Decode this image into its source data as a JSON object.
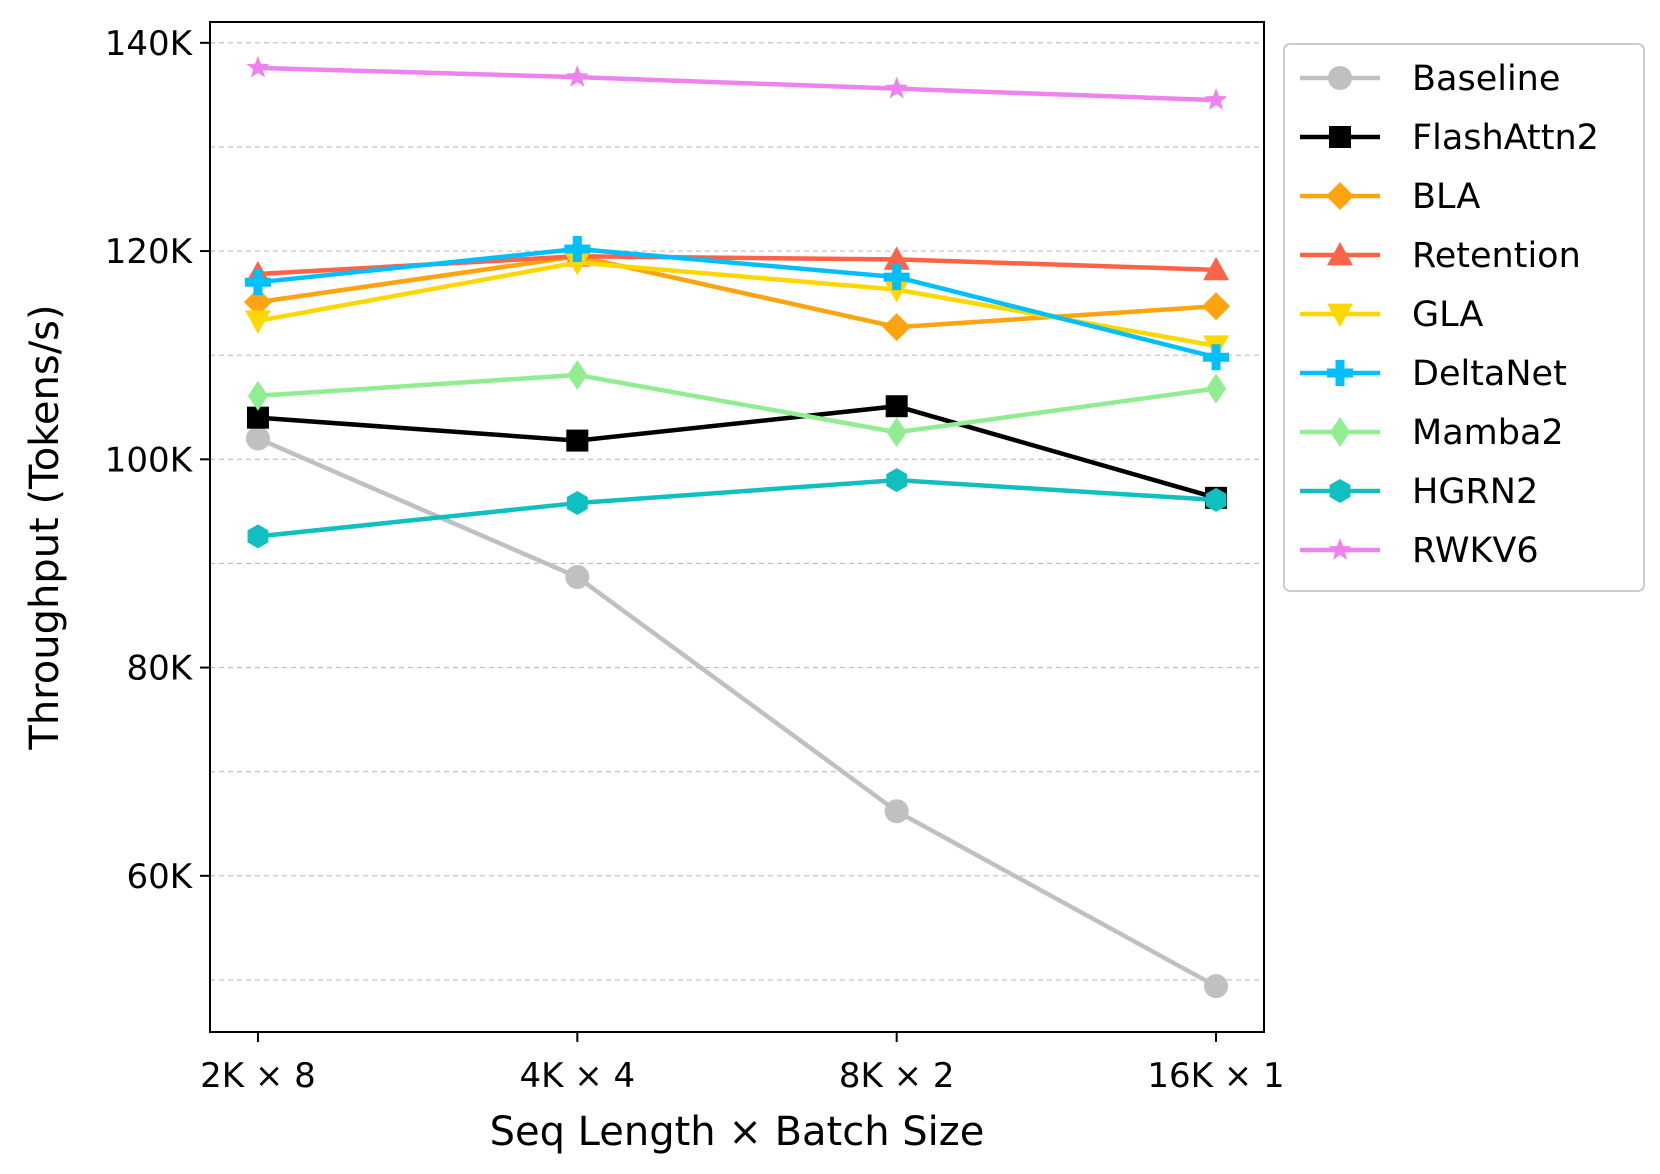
{
  "chart_data": {
    "type": "line",
    "title": "",
    "xlabel": "Seq Length × Batch Size",
    "ylabel": "Throughput (Tokens/s)",
    "categories": [
      "2K × 8",
      "4K × 4",
      "8K × 2",
      "16K × 1"
    ],
    "ylim": [
      45000,
      142000
    ],
    "yticks": [
      60000,
      80000,
      100000,
      120000,
      140000
    ],
    "ytick_labels": [
      "60K",
      "80K",
      "100K",
      "120K",
      "140K"
    ],
    "minor_gridlines": [
      50000,
      70000,
      90000,
      110000,
      130000
    ],
    "grid": "horizontal dashed",
    "legend_position": "outside-right-top",
    "series": [
      {
        "name": "Baseline",
        "color": "#c0c0c0",
        "marker": "circle",
        "values": [
          102000,
          88700,
          66200,
          49400
        ]
      },
      {
        "name": "FlashAttn2",
        "color": "#000000",
        "marker": "square",
        "values": [
          104000,
          101800,
          105100,
          96300
        ]
      },
      {
        "name": "BLA",
        "color": "#ffa30f",
        "marker": "diamond",
        "values": [
          115100,
          119500,
          112700,
          114700
        ]
      },
      {
        "name": "Retention",
        "color": "#ff6347",
        "marker": "triangle-up",
        "values": [
          117800,
          119500,
          119200,
          118200
        ]
      },
      {
        "name": "GLA",
        "color": "#ffd700",
        "marker": "triangle-down",
        "values": [
          113300,
          118900,
          116300,
          110900
        ]
      },
      {
        "name": "DeltaNet",
        "color": "#00bfff",
        "marker": "plus",
        "values": [
          117000,
          120200,
          117500,
          109800
        ]
      },
      {
        "name": "Mamba2",
        "color": "#90ee90",
        "marker": "thin-diamond",
        "values": [
          106100,
          108100,
          102600,
          106800
        ]
      },
      {
        "name": "HGRN2",
        "color": "#10bfbf",
        "marker": "hexagon",
        "values": [
          92600,
          95800,
          98000,
          96100
        ]
      },
      {
        "name": "RWKV6",
        "color": "#ee82ee",
        "marker": "star",
        "values": [
          137600,
          136700,
          135600,
          134500
        ]
      }
    ]
  }
}
